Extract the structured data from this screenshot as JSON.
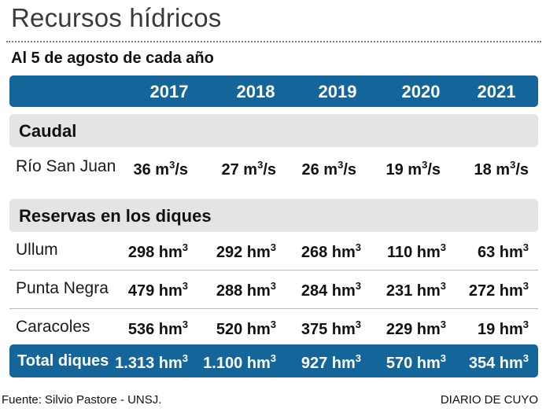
{
  "title": "Recursos hídricos",
  "subtitle": "Al 5 de agosto de cada año",
  "years": [
    "2017",
    "2018",
    "2019",
    "2020",
    "2021"
  ],
  "sections": {
    "caudal": {
      "label": "Caudal",
      "rows": [
        {
          "name": "Río San Juan",
          "unit": "m",
          "sup": "3",
          "suffix": "/s",
          "values": [
            "36",
            "27",
            "26",
            "19",
            "18"
          ]
        }
      ]
    },
    "reservas": {
      "label": "Reservas en los diques",
      "rows": [
        {
          "name": "Ullum",
          "unit": "hm",
          "sup": "3",
          "values": [
            "298",
            "292",
            "268",
            "110",
            "63"
          ]
        },
        {
          "name": "Punta Negra",
          "unit": "hm",
          "sup": "3",
          "values": [
            "479",
            "288",
            "284",
            "231",
            "272"
          ]
        },
        {
          "name": "Caracoles",
          "unit": "hm",
          "sup": "3",
          "values": [
            "536",
            "520",
            "375",
            "229",
            "19"
          ]
        }
      ]
    }
  },
  "total": {
    "name": "Total diques",
    "unit": "hm",
    "sup": "3",
    "values": [
      "1.313",
      "1.100",
      "927",
      "570",
      "354"
    ]
  },
  "footer": {
    "source": "Fuente: Silvio Pastore - UNSJ.",
    "credit": "DIARIO DE CUYO"
  },
  "colors": {
    "accent": "#14659a",
    "band": "#e4e4e4"
  }
}
